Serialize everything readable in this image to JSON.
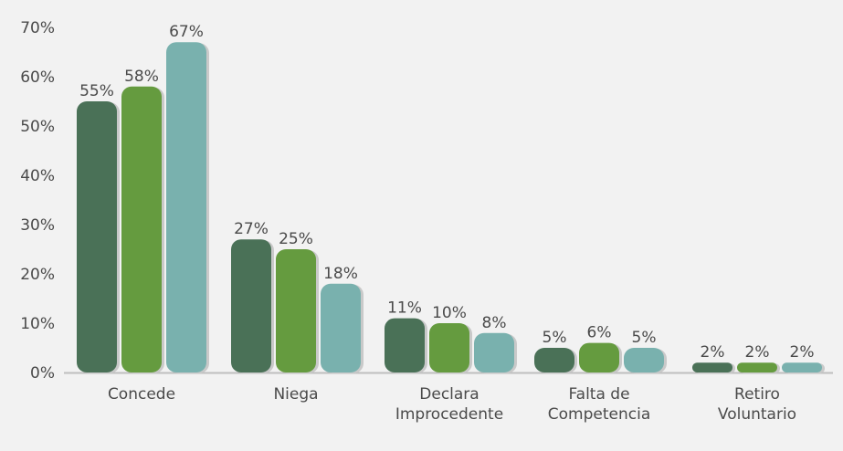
{
  "chart_data": {
    "type": "bar",
    "categories": [
      [
        "Concede"
      ],
      [
        "Niega"
      ],
      [
        "Declara",
        "Improcedente"
      ],
      [
        "Falta de",
        "Competencia"
      ],
      [
        "Retiro",
        "Voluntario"
      ]
    ],
    "series": [
      {
        "values": [
          55,
          27,
          11,
          5,
          2
        ],
        "color": "#4a7157"
      },
      {
        "values": [
          58,
          25,
          10,
          6,
          2
        ],
        "color": "#659b3f"
      },
      {
        "values": [
          67,
          18,
          8,
          5,
          2
        ],
        "color": "#79b1ae"
      }
    ],
    "data_labels": [
      [
        "55%",
        "27%",
        "11%",
        "5%",
        "2%"
      ],
      [
        "58%",
        "25%",
        "10%",
        "6%",
        "2%"
      ],
      [
        "67%",
        "18%",
        "8%",
        "5%",
        "2%"
      ]
    ],
    "y_ticks": [
      0,
      10,
      20,
      30,
      40,
      50,
      60,
      70
    ],
    "y_tick_labels": [
      "0%",
      "10%",
      "20%",
      "30%",
      "40%",
      "50%",
      "60%",
      "70%"
    ],
    "ylim": [
      0,
      70
    ],
    "grid": false,
    "legend": "none",
    "title": "",
    "xlabel": "",
    "ylabel": ""
  }
}
